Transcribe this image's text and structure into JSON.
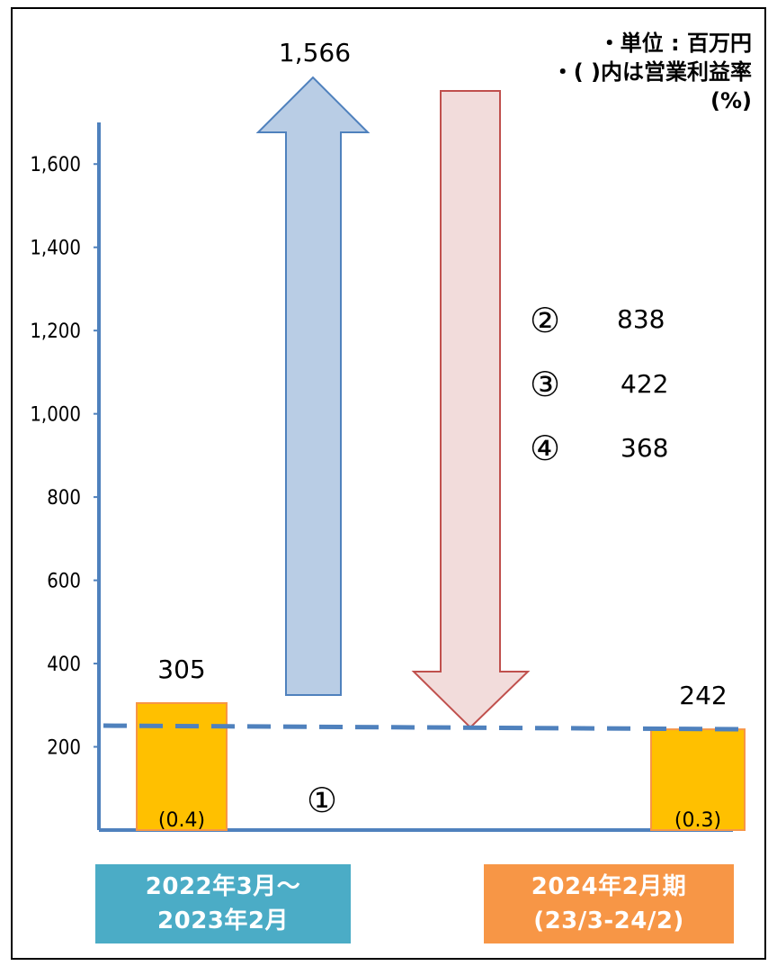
{
  "unit_note": {
    "line1": "・単位 : 百万円",
    "line2": "・( )内は営業利益率",
    "line3": "(%)"
  },
  "category_labels": {
    "left_line1": "2022年3月～",
    "left_line2": "2023年2月",
    "right_line1": "2024年2月期",
    "right_line2": "(23/3-24/2)"
  },
  "factors": [
    {
      "marker": "②",
      "value": "838"
    },
    {
      "marker": "③",
      "value": "422"
    },
    {
      "marker": "④",
      "value": "368"
    }
  ],
  "marker_1": "①",
  "colors": {
    "axis": "#4f81bd",
    "bar_fill": "#ffc000",
    "bar_edge": "#f79646",
    "up_arrow_fill": "#b9cde5",
    "up_arrow_edge": "#4f81bd",
    "down_arrow_fill": "#f2dcdb",
    "down_arrow_edge": "#c0504d",
    "dashed_line": "#4f81bd"
  },
  "chart_data": {
    "type": "bar",
    "title": "",
    "xlabel": "",
    "ylabel": "",
    "ylim": [
      0,
      1700
    ],
    "yticks": [
      200,
      400,
      600,
      800,
      1000,
      1200,
      1400,
      1600
    ],
    "ytick_labels": [
      "200",
      "400",
      "600",
      "800",
      "1,000",
      "1,200",
      "1,400",
      "1,600"
    ],
    "categories": [
      "2022年3月～2023年2月",
      "2024年2月期(23/3-24/2)"
    ],
    "values": [
      305,
      242
    ],
    "value_labels": [
      "305",
      "242"
    ],
    "margins": [
      "(0.4)",
      "(0.3)"
    ],
    "increase": {
      "value": 1566,
      "label": "1,566"
    },
    "decrease": {
      "label_markers": [
        "②",
        "③",
        "④"
      ],
      "values": [
        838,
        422,
        368
      ]
    },
    "grid": false
  }
}
